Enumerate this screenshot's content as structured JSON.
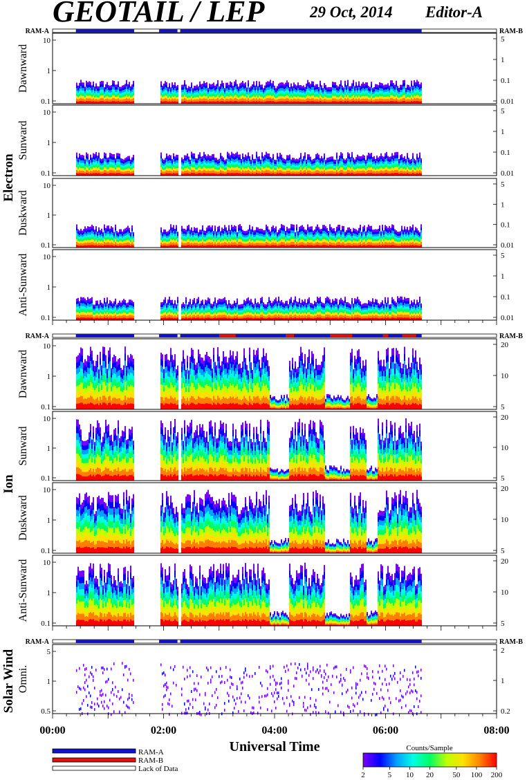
{
  "header": {
    "title": "GEOTAIL / LEP",
    "date": "29 Oct, 2014",
    "editor": "Editor-A"
  },
  "colors": {
    "ram_a": "#1010d0",
    "ram_b": "#e01010",
    "lack": "#ffffff",
    "spectrogram_scale": [
      "#7a00ff",
      "#0000ff",
      "#00a0ff",
      "#00ffe0",
      "#00ff60",
      "#c0ff00",
      "#ffe000",
      "#ff8000",
      "#ff0000"
    ]
  },
  "chart_data": {
    "type": "heatmap",
    "xlabel": "Universal Time",
    "x_ticks": [
      "00:00",
      "02:00",
      "04:00",
      "06:00",
      "08:00"
    ],
    "x_range_hours": [
      0,
      8
    ],
    "data_coverage_hours": [
      [
        0.42,
        1.47
      ],
      [
        1.92,
        2.25
      ],
      [
        2.3,
        6.65
      ]
    ],
    "ram_bar_label_left": "RAM-A",
    "ram_bar_label_right": "RAM-B",
    "groups": [
      {
        "name": "Electron",
        "panels": [
          {
            "label": "Dawnward",
            "left_ticks": [
              "10",
              "1",
              "0.1"
            ],
            "right_ticks": [
              "5",
              "1",
              "0.1",
              "0.01"
            ]
          },
          {
            "label": "Sunward",
            "left_ticks": [
              "10",
              "1",
              "0.1"
            ],
            "right_ticks": [
              "5",
              "1",
              "0.1",
              "0.01"
            ]
          },
          {
            "label": "Duskward",
            "left_ticks": [
              "10",
              "1",
              "0.1"
            ],
            "right_ticks": [
              "5",
              "1",
              "0.1",
              "0.01"
            ]
          },
          {
            "label": "Anti-Sunward",
            "left_ticks": [
              "10",
              "1",
              "0.1"
            ],
            "right_ticks": [
              "5",
              "1",
              "0.1",
              "0.01"
            ]
          }
        ]
      },
      {
        "name": "Ion",
        "panels": [
          {
            "label": "Dawnward",
            "left_ticks": [
              "10",
              "1",
              "0.1"
            ],
            "right_ticks": [
              "20",
              "10",
              "5"
            ]
          },
          {
            "label": "Sunward",
            "left_ticks": [
              "10",
              "1",
              "0.1"
            ],
            "right_ticks": [
              "20",
              "10",
              "5"
            ]
          },
          {
            "label": "Duskward",
            "left_ticks": [
              "10",
              "1",
              "0.1"
            ],
            "right_ticks": [
              "20",
              "10",
              "5"
            ]
          },
          {
            "label": "Anti-Sunward",
            "left_ticks": [
              "10",
              "1",
              "0.1"
            ],
            "right_ticks": [
              "20",
              "10",
              "5"
            ]
          }
        ]
      },
      {
        "name": "Solar Wind",
        "panels": [
          {
            "label": "Omni.",
            "left_ticks": [
              "5",
              "1",
              "0.5"
            ],
            "right_ticks": [
              "2",
              "1",
              "0.2"
            ]
          }
        ]
      }
    ],
    "legend": {
      "items": [
        "RAM-A",
        "RAM-B",
        "Lack of Data"
      ]
    },
    "colorbar": {
      "title": "Counts/Sample",
      "ticks": [
        "2",
        "5",
        "10",
        "20",
        "50",
        "100",
        "200"
      ],
      "range": [
        2,
        200
      ],
      "scale": "log"
    }
  }
}
